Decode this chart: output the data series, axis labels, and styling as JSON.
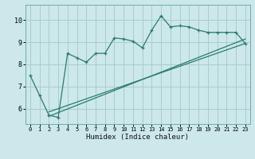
{
  "title": "",
  "xlabel": "Humidex (Indice chaleur)",
  "bg_color": "#cce8ea",
  "grid_color": "#aacccc",
  "line_color": "#2a7a6e",
  "spine_color": "#6aadaa",
  "xlim": [
    -0.5,
    23.5
  ],
  "ylim": [
    5.3,
    10.7
  ],
  "xticks": [
    0,
    1,
    2,
    3,
    4,
    5,
    6,
    7,
    8,
    9,
    10,
    11,
    12,
    13,
    14,
    15,
    16,
    17,
    18,
    19,
    20,
    21,
    22,
    23
  ],
  "yticks": [
    6,
    7,
    8,
    9,
    10
  ],
  "main_x": [
    0,
    1,
    2,
    3,
    4,
    5,
    6,
    7,
    8,
    9,
    10,
    11,
    12,
    13,
    14,
    15,
    16,
    17,
    18,
    19,
    20,
    21,
    22,
    23
  ],
  "main_y": [
    7.5,
    6.6,
    5.7,
    5.6,
    8.5,
    8.3,
    8.1,
    8.5,
    8.5,
    9.2,
    9.15,
    9.05,
    8.75,
    9.55,
    10.2,
    9.7,
    9.75,
    9.7,
    9.55,
    9.45,
    9.45,
    9.45,
    9.45,
    8.95
  ],
  "trend1_x": [
    2,
    23
  ],
  "trend1_y": [
    5.85,
    8.95
  ],
  "trend2_x": [
    2,
    23
  ],
  "trend2_y": [
    5.65,
    9.15
  ]
}
